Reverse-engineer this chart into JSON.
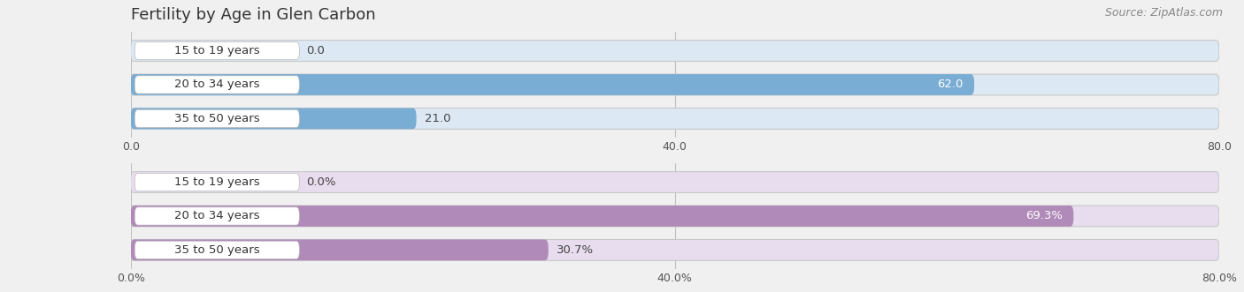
{
  "title": "Fertility by Age in Glen Carbon",
  "source": "Source: ZipAtlas.com",
  "top_section": {
    "categories": [
      "15 to 19 years",
      "20 to 34 years",
      "35 to 50 years"
    ],
    "values": [
      0.0,
      62.0,
      21.0
    ],
    "bar_color": "#7aadd4",
    "bar_bg_color": "#dce8f3",
    "xlim": [
      0,
      80
    ],
    "xticks": [
      0.0,
      40.0,
      80.0
    ],
    "value_label_inside_threshold": 55,
    "fmt_percent": false
  },
  "bottom_section": {
    "categories": [
      "15 to 19 years",
      "20 to 34 years",
      "35 to 50 years"
    ],
    "values": [
      0.0,
      69.3,
      30.7
    ],
    "bar_color": "#b08ab8",
    "bar_bg_color": "#e8ddef",
    "xlim": [
      0,
      80
    ],
    "xticks": [
      0.0,
      40.0,
      80.0
    ],
    "value_label_inside_threshold": 55,
    "fmt_percent": true
  },
  "figsize": [
    14.06,
    3.31
  ],
  "dpi": 100,
  "bg_color": "#f0f0f0",
  "title_fontsize": 13,
  "label_fontsize": 9.5,
  "tick_fontsize": 9,
  "source_fontsize": 9
}
